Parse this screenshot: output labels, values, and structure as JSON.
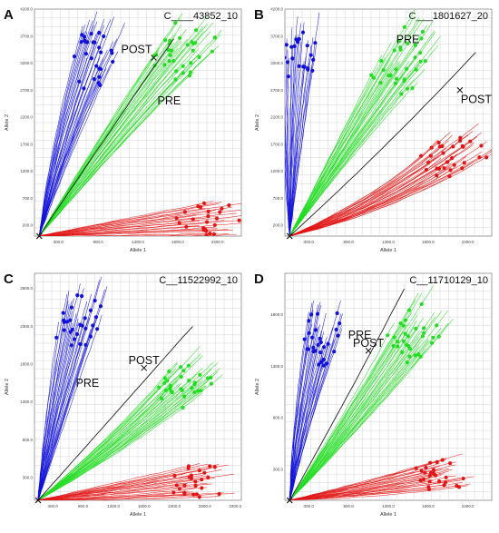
{
  "figure": {
    "panels": [
      {
        "letter": "A",
        "assay": "C____43852_10",
        "xlabel": "Allele 1",
        "ylabel": "Allele 2",
        "xticks": [
          "300.0",
          "800.0",
          "1300.0",
          "1800.0",
          "2300.0"
        ],
        "yticks": [
          "200.0",
          "700.0",
          "1200.0",
          "1700.0",
          "2200.0",
          "2700.0",
          "3200.0",
          "3700.0",
          "4200.0"
        ],
        "annotations": [
          {
            "text": "POST"
          },
          {
            "text": "PRE"
          }
        ]
      },
      {
        "letter": "B",
        "assay": "C___1801627_20",
        "xlabel": "Allele 1",
        "ylabel": "Allele 2",
        "xticks": [
          "300.0",
          "800.0",
          "1300.0",
          "1800.0",
          "2300.0"
        ],
        "yticks": [
          "200.0",
          "700.0",
          "1200.0",
          "1700.0",
          "2200.0",
          "2700.0",
          "3200.0",
          "3700.0",
          "4200.0"
        ],
        "annotations": [
          {
            "text": "PRE"
          },
          {
            "text": "POST"
          }
        ]
      },
      {
        "letter": "C",
        "assay": "C__11522992_10",
        "xlabel": "Allele 1",
        "ylabel": "Allele 2",
        "xticks": [
          "300.0",
          "800.0",
          "1300.0",
          "1800.0",
          "2300.0",
          "2800.0",
          "3300.0"
        ],
        "yticks": [
          "300.0",
          "800.0",
          "1300.0",
          "1800.0",
          "2300.0",
          "2800.0"
        ],
        "annotations": [
          {
            "text": "POST"
          },
          {
            "text": "PRE"
          }
        ]
      },
      {
        "letter": "D",
        "assay": "C__11710129_10",
        "xlabel": "Allele 1",
        "ylabel": "Allele 2",
        "xticks": [
          "300.0",
          "800.0",
          "1300.0",
          "1800.0",
          "2300.0"
        ],
        "yticks": [
          "300.0",
          "800.0",
          "1300.0",
          "1800.0"
        ],
        "annotations": [
          {
            "text": "POST"
          },
          {
            "text": "PRE"
          }
        ]
      }
    ]
  },
  "colors": {
    "allele2_cluster": "#1010d8",
    "heterozygous_cluster": "#22dd22",
    "allele1_cluster": "#e21616",
    "ntc_trace": "#222222",
    "grid": "#d4d4d4",
    "axis": "#888888"
  },
  "chart_data": [
    {
      "type": "line",
      "panel": "A",
      "title": "C____43852_10",
      "xlabel": "Allele 1",
      "ylabel": "Allele 2",
      "xlim": [
        0,
        2600
      ],
      "ylim": [
        0,
        4200
      ],
      "grid": true,
      "series": [
        {
          "cluster": "allele2",
          "color": "#1010d8",
          "trace_count": 28,
          "x": [
            60,
            350,
            900
          ],
          "y": [
            0,
            1800,
            4000
          ]
        },
        {
          "cluster": "heterozygous",
          "color": "#22dd22",
          "trace_count": 30,
          "x": [
            60,
            1200,
            2150
          ],
          "y": [
            0,
            2300,
            3950
          ]
        },
        {
          "cluster": "allele1",
          "color": "#e21616",
          "trace_count": 25,
          "x": [
            60,
            1200,
            2600
          ],
          "y": [
            0,
            150,
            350
          ]
        },
        {
          "cluster": "ntc",
          "color": "#222222",
          "trace_count": 1,
          "x": [
            60,
            950,
            1750
          ],
          "y": [
            0,
            2000,
            3650
          ]
        }
      ],
      "markers": [
        {
          "label": "POST",
          "x": 1500,
          "y": 3300
        },
        {
          "label": "PRE",
          "x": 1500,
          "y": 2500
        }
      ]
    },
    {
      "type": "line",
      "panel": "B",
      "title": "C___1801627_20",
      "xlabel": "Allele 1",
      "ylabel": "Allele 2",
      "xlim": [
        0,
        2600
      ],
      "ylim": [
        0,
        4200
      ],
      "grid": true,
      "series": [
        {
          "cluster": "allele2",
          "color": "#1010d8",
          "trace_count": 25,
          "x": [
            60,
            90,
            180
          ],
          "y": [
            0,
            2000,
            4100
          ]
        },
        {
          "cluster": "heterozygous",
          "color": "#22dd22",
          "trace_count": 30,
          "x": [
            60,
            900,
            1800
          ],
          "y": [
            0,
            2000,
            3900
          ]
        },
        {
          "cluster": "allele1",
          "color": "#e21616",
          "trace_count": 30,
          "x": [
            60,
            1300,
            2450
          ],
          "y": [
            0,
            600,
            1800
          ]
        },
        {
          "cluster": "ntc",
          "color": "#222222",
          "trace_count": 1,
          "x": [
            60,
            1200,
            2400
          ],
          "y": [
            0,
            1500,
            3400
          ]
        }
      ],
      "markers": [
        {
          "label": "PRE",
          "x": 1650,
          "y": 3500
        },
        {
          "label": "POST",
          "x": 2200,
          "y": 2700
        }
      ]
    },
    {
      "type": "line",
      "panel": "C",
      "title": "C__11522992_10",
      "xlabel": "Allele 1",
      "ylabel": "Allele 2",
      "xlim": [
        0,
        3400
      ],
      "ylim": [
        0,
        3000
      ],
      "grid": true,
      "series": [
        {
          "cluster": "allele2",
          "color": "#1010d8",
          "trace_count": 28,
          "x": [
            60,
            350,
            900
          ],
          "y": [
            0,
            1200,
            2900
          ]
        },
        {
          "cluster": "heterozygous",
          "color": "#22dd22",
          "trace_count": 30,
          "x": [
            60,
            1500,
            2900
          ],
          "y": [
            0,
            800,
            1850
          ]
        },
        {
          "cluster": "allele1",
          "color": "#e21616",
          "trace_count": 25,
          "x": [
            60,
            1500,
            3200
          ],
          "y": [
            0,
            120,
            300
          ]
        },
        {
          "cluster": "ntc",
          "color": "#222222",
          "trace_count": 1,
          "x": [
            60,
            1300,
            2600
          ],
          "y": [
            0,
            1100,
            2300
          ]
        }
      ],
      "markers": [
        {
          "label": "POST",
          "x": 1800,
          "y": 1750
        },
        {
          "label": "PRE",
          "x": 620,
          "y": 1550
        }
      ]
    },
    {
      "type": "line",
      "panel": "D",
      "title": "C__11710129_10",
      "xlabel": "Allele 1",
      "ylabel": "Allele 2",
      "xlim": [
        0,
        2600
      ],
      "ylim": [
        0,
        2200
      ],
      "grid": true,
      "series": [
        {
          "cluster": "allele2",
          "color": "#1010d8",
          "trace_count": 28,
          "x": [
            60,
            200,
            550
          ],
          "y": [
            0,
            800,
            1900
          ]
        },
        {
          "cluster": "heterozygous",
          "color": "#22dd22",
          "trace_count": 30,
          "x": [
            60,
            1000,
            1950
          ],
          "y": [
            0,
            900,
            1950
          ]
        },
        {
          "cluster": "allele1",
          "color": "#e21616",
          "trace_count": 25,
          "x": [
            60,
            1200,
            2300
          ],
          "y": [
            0,
            120,
            300
          ]
        },
        {
          "cluster": "ntc",
          "color": "#222222",
          "trace_count": 1,
          "x": [
            60,
            800,
            1500
          ],
          "y": [
            0,
            1000,
            2050
          ]
        }
      ],
      "markers": [
        {
          "label": "POST",
          "x": 1050,
          "y": 1450
        },
        {
          "label": "PRE",
          "x": 750,
          "y": 1600
        }
      ]
    }
  ]
}
